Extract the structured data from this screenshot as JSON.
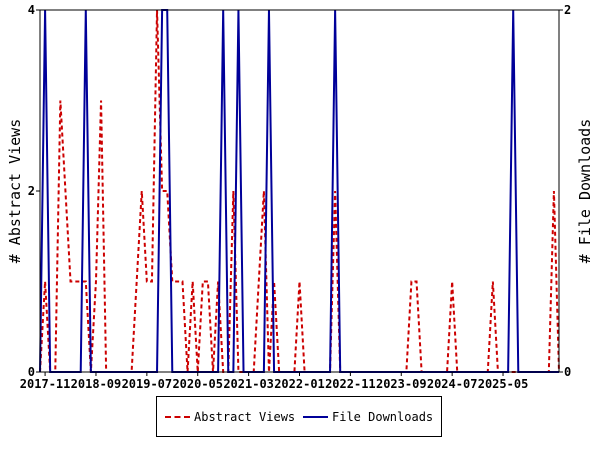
{
  "chart_data": {
    "type": "line",
    "title": "",
    "x_tick_labels": [
      "2017-11",
      "2018-09",
      "2019-07",
      "2020-05",
      "2021-03",
      "2022-01",
      "2022-11",
      "2023-09",
      "2024-07",
      "2025-05"
    ],
    "y_left": {
      "label": "# Abstract Views",
      "ylim": [
        0,
        4
      ],
      "ticks": [
        "0",
        "2",
        "4"
      ]
    },
    "y_right": {
      "label": "# File Downloads",
      "ylim": [
        0,
        2
      ],
      "ticks": [
        "0",
        "2"
      ]
    },
    "grid": false,
    "legend_position": "bottom",
    "x_start": "2017-10",
    "series": [
      {
        "name": "Abstract Views",
        "axis": "left",
        "color": "#cc0000",
        "style": "dashed",
        "values": [
          0,
          1,
          0,
          0,
          3,
          2,
          1,
          1,
          1,
          1,
          0,
          1,
          3,
          0,
          0,
          0,
          0,
          0,
          0,
          1,
          2,
          1,
          1,
          4,
          2,
          2,
          1,
          1,
          1,
          0,
          1,
          0,
          1,
          1,
          0,
          1,
          0,
          0,
          2,
          0,
          0,
          0,
          0,
          1,
          2,
          0,
          1,
          0,
          0,
          0,
          0,
          1,
          0,
          0,
          0,
          0,
          0,
          0,
          2,
          0,
          0,
          0,
          0,
          0,
          0,
          0,
          0,
          0,
          0,
          0,
          0,
          0,
          0,
          1,
          1,
          0,
          0,
          0,
          0,
          0,
          0,
          1,
          0,
          0,
          0,
          0,
          0,
          0,
          0,
          1,
          0,
          0,
          0,
          0,
          0,
          0,
          0,
          0,
          0,
          0,
          0,
          2,
          0
        ]
      },
      {
        "name": "File Downloads",
        "axis": "right",
        "color": "#000099",
        "style": "solid",
        "values": [
          0,
          2,
          0,
          0,
          0,
          0,
          0,
          0,
          0,
          2,
          0,
          0,
          0,
          0,
          0,
          0,
          0,
          0,
          0,
          0,
          0,
          0,
          0,
          0,
          2,
          2,
          0,
          0,
          0,
          0,
          0,
          0,
          0,
          0,
          0,
          0,
          2,
          0,
          0,
          2,
          0,
          0,
          0,
          0,
          0,
          2,
          0,
          0,
          0,
          0,
          0,
          0,
          0,
          0,
          0,
          0,
          0,
          0,
          2,
          0,
          0,
          0,
          0,
          0,
          0,
          0,
          0,
          0,
          0,
          0,
          0,
          0,
          0,
          0,
          0,
          0,
          0,
          0,
          0,
          0,
          0,
          0,
          0,
          0,
          0,
          0,
          0,
          0,
          0,
          0,
          0,
          0,
          0,
          2,
          0,
          0,
          0,
          0,
          0,
          0,
          0,
          0,
          0
        ]
      }
    ]
  }
}
